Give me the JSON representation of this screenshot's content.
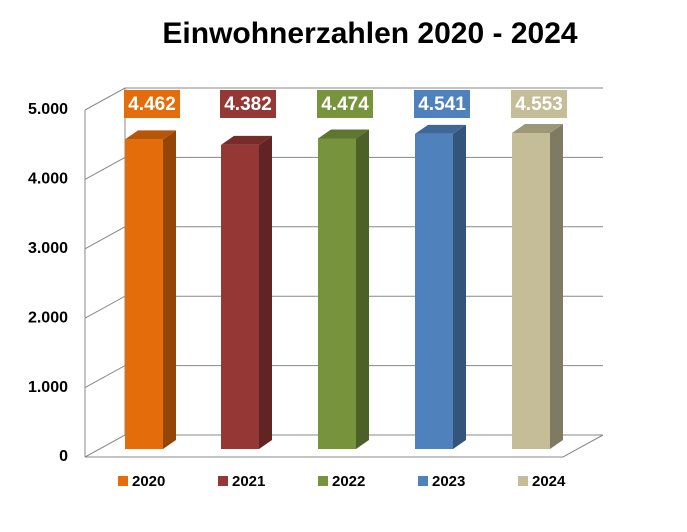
{
  "chart_data": {
    "type": "bar3d",
    "title": "Einwohnerzahlen 2020 - 2024",
    "categories": [
      null
    ],
    "series": [
      {
        "name": "2020",
        "color": "#e46c0a",
        "values": [
          4462
        ],
        "value_labels": [
          "4.462"
        ]
      },
      {
        "name": "2021",
        "color": "#953735",
        "values": [
          4382
        ],
        "value_labels": [
          "4.382"
        ]
      },
      {
        "name": "2022",
        "color": "#77933c",
        "values": [
          4474
        ],
        "value_labels": [
          "4.474"
        ]
      },
      {
        "name": "2023",
        "color": "#4f81bd",
        "values": [
          4541
        ],
        "value_labels": [
          "4.541"
        ]
      },
      {
        "name": "2024",
        "color": "#c4bd97",
        "values": [
          4553
        ],
        "value_labels": [
          "4.553"
        ]
      }
    ],
    "ylim": [
      0,
      5000
    ],
    "yticks": [
      0,
      {
        "value": 1000,
        "label": "1.000"
      },
      {
        "value": 2000,
        "label": "2.000"
      },
      {
        "value": 3000,
        "label": "3.000"
      },
      {
        "value": 4000,
        "label": "4.000"
      },
      {
        "value": 5000,
        "label": "5.000"
      }
    ],
    "grid": true,
    "legend": "bottom"
  }
}
